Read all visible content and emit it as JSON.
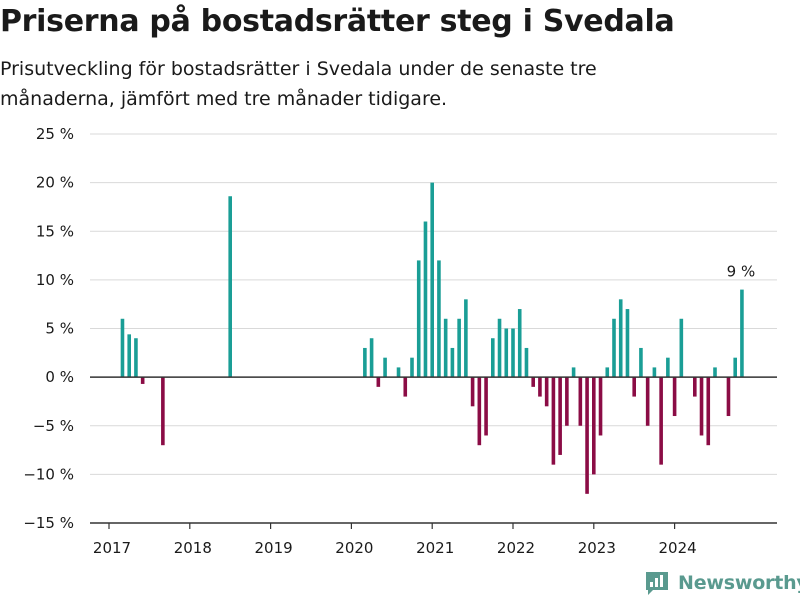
{
  "header": {
    "title": "Priserna på bostadsrätter steg i Svedala",
    "subtitle": "Prisutveckling för bostadsrätter i Svedala under de senaste tre månaderna, jämfört med tre månader tidigare."
  },
  "brand": {
    "name": "Newsworthy",
    "color": "#5a9a8f"
  },
  "colors": {
    "positive": "#1a9e96",
    "negative": "#8b0c45",
    "grid": "#d9d9d9",
    "axis": "#333333"
  },
  "chart_data": {
    "type": "bar",
    "title": "Priserna på bostadsrätter steg i Svedala",
    "xlabel": "",
    "ylabel": "",
    "ylim": [
      -15,
      25
    ],
    "yticks": [
      -15,
      -10,
      -5,
      0,
      5,
      10,
      15,
      20,
      25
    ],
    "ytick_labels": [
      "−15 %",
      "−10 %",
      "−5 %",
      "0 %",
      "5 %",
      "10 %",
      "15 %",
      "20 %",
      "25 %"
    ],
    "xticks": [
      "2017",
      "2018",
      "2019",
      "2020",
      "2021",
      "2022",
      "2023",
      "2024"
    ],
    "grid": true,
    "series": [
      {
        "x": [
          "2017-03",
          "2017-04",
          "2017-05",
          "2017-06",
          "2017-09",
          "2018-07",
          "2020-03",
          "2020-04",
          "2020-05",
          "2020-06",
          "2020-08",
          "2020-09",
          "2020-10",
          "2020-11",
          "2020-12",
          "2021-01",
          "2021-02",
          "2021-03",
          "2021-04",
          "2021-05",
          "2021-06",
          "2021-07",
          "2021-08",
          "2021-09",
          "2021-10",
          "2021-11",
          "2021-12",
          "2022-01",
          "2022-02",
          "2022-03",
          "2022-04",
          "2022-05",
          "2022-06",
          "2022-07",
          "2022-08",
          "2022-09",
          "2022-10",
          "2022-11",
          "2022-12",
          "2023-01",
          "2023-02",
          "2023-03",
          "2023-04",
          "2023-05",
          "2023-06",
          "2023-07",
          "2023-08",
          "2023-09",
          "2023-10",
          "2023-11",
          "2023-12",
          "2024-01",
          "2024-02",
          "2024-04",
          "2024-05",
          "2024-06",
          "2024-07",
          "2024-09",
          "2024-10"
        ],
        "values": [
          6,
          4.4,
          4,
          -0.7,
          -7,
          18.6,
          3,
          4,
          -1,
          2,
          1,
          -2,
          2,
          12,
          16,
          20,
          12,
          6,
          3,
          6,
          8,
          -3,
          -7,
          -6,
          4,
          6,
          5,
          5,
          7,
          3,
          -1,
          -2,
          -3,
          -9,
          -8,
          -5,
          1,
          -5,
          -12,
          -10,
          -6,
          1,
          6,
          8,
          7,
          -2,
          3,
          -5,
          1,
          -9,
          2,
          -4,
          6,
          -2,
          -6,
          -7,
          1,
          -4,
          2
        ]
      }
    ],
    "last_point": {
      "x": "2024-11",
      "value": 9
    },
    "annotations": [
      {
        "x": "2024-11",
        "text": "9 %"
      }
    ]
  }
}
